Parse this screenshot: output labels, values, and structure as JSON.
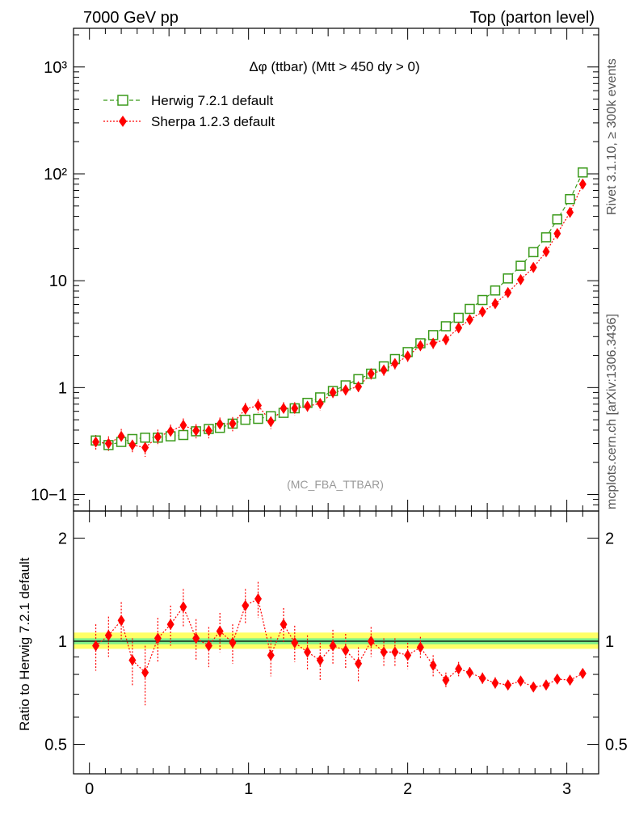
{
  "header": {
    "left": "7000 GeV pp",
    "right": "Top (parton level)"
  },
  "side_labels": {
    "rivet": "Rivet 3.1.10, ≥ 300k events",
    "mcplots": "mcplots.cern.ch [arXiv:1306.3436]"
  },
  "colors": {
    "herwig": "#3a9a1a",
    "sherpa": "#ff0000",
    "band_inner": "#7ff08a",
    "band_outer": "#ffff66"
  },
  "chart_data": [
    {
      "type": "scatter",
      "title": "Δφ (ttbar) (Mtt > 450 dy > 0)",
      "watermark": "(MC_FBA_TTBAR)",
      "xlabel": "",
      "ylabel": "",
      "yscale": "log",
      "xlim": [
        -0.1,
        3.2
      ],
      "ylim": [
        0.07,
        2300
      ],
      "ytick_labels": [
        "10−1",
        "1",
        "10",
        "10²",
        "10³"
      ],
      "legend_position": "top-left",
      "x": [
        0.04,
        0.12,
        0.2,
        0.27,
        0.35,
        0.43,
        0.51,
        0.59,
        0.67,
        0.75,
        0.82,
        0.9,
        0.98,
        1.06,
        1.14,
        1.22,
        1.29,
        1.37,
        1.45,
        1.53,
        1.61,
        1.69,
        1.77,
        1.85,
        1.92,
        2.0,
        2.08,
        2.16,
        2.24,
        2.32,
        2.39,
        2.47,
        2.55,
        2.63,
        2.71,
        2.79,
        2.87,
        2.94,
        3.02,
        3.1
      ],
      "series": [
        {
          "name": "Herwig 7.2.1 default",
          "marker": "open-square",
          "values": [
            0.32,
            0.29,
            0.31,
            0.33,
            0.34,
            0.34,
            0.35,
            0.36,
            0.39,
            0.41,
            0.42,
            0.46,
            0.5,
            0.51,
            0.54,
            0.58,
            0.64,
            0.72,
            0.81,
            0.93,
            1.05,
            1.2,
            1.35,
            1.58,
            1.85,
            2.15,
            2.6,
            3.1,
            3.75,
            4.5,
            5.45,
            6.6,
            8.1,
            10.5,
            13.8,
            18.5,
            25.5,
            37.5,
            58,
            103
          ],
          "errors": [
            0.02,
            0.02,
            0.02,
            0.02,
            0.02,
            0.02,
            0.02,
            0.02,
            0.02,
            0.02,
            0.02,
            0.02,
            0.02,
            0.02,
            0.02,
            0.02,
            0.03,
            0.03,
            0.03,
            0.03,
            0.04,
            0.04,
            0.05,
            0.05,
            0.06,
            0.07,
            0.08,
            0.09,
            0.1,
            0.12,
            0.14,
            0.17,
            0.2,
            0.25,
            0.3,
            0.4,
            0.5,
            0.7,
            1.0,
            1.5
          ]
        },
        {
          "name": "Sherpa 1.2.3 default",
          "marker": "filled-diamond",
          "values": [
            0.31,
            0.3,
            0.35,
            0.29,
            0.275,
            0.345,
            0.39,
            0.445,
            0.395,
            0.395,
            0.455,
            0.46,
            0.63,
            0.68,
            0.48,
            0.64,
            0.64,
            0.67,
            0.71,
            0.9,
            0.95,
            1.02,
            1.35,
            1.46,
            1.68,
            1.97,
            2.47,
            2.6,
            2.82,
            3.62,
            4.32,
            5.12,
            6.1,
            7.74,
            10.22,
            13.3,
            18.7,
            27.6,
            43.6,
            80
          ],
          "errors": [
            0.05,
            0.05,
            0.06,
            0.05,
            0.05,
            0.06,
            0.06,
            0.07,
            0.06,
            0.06,
            0.07,
            0.07,
            0.09,
            0.1,
            0.07,
            0.09,
            0.09,
            0.09,
            0.1,
            0.12,
            0.13,
            0.14,
            0.16,
            0.17,
            0.2,
            0.23,
            0.27,
            0.3,
            0.32,
            0.38,
            0.45,
            0.52,
            0.6,
            0.75,
            0.95,
            1.2,
            1.6,
            2.2,
            3.2,
            5.0
          ]
        }
      ]
    },
    {
      "type": "scatter",
      "title": "",
      "xlabel": "",
      "ylabel": "Ratio to Herwig 7.2.1 default",
      "yscale": "log",
      "xlim": [
        -0.1,
        3.2
      ],
      "ylim": [
        0.41,
        2.4
      ],
      "ytick_labels": [
        "0.5",
        "1",
        "2"
      ],
      "xtick_labels": [
        "0",
        "1",
        "2",
        "3"
      ],
      "reference": {
        "value": 1,
        "band_inner": [
          0.98,
          1.02
        ],
        "band_outer": [
          0.95,
          1.06
        ]
      },
      "x": [
        0.04,
        0.12,
        0.2,
        0.27,
        0.35,
        0.43,
        0.51,
        0.59,
        0.67,
        0.75,
        0.82,
        0.9,
        0.98,
        1.06,
        1.14,
        1.22,
        1.29,
        1.37,
        1.45,
        1.53,
        1.61,
        1.69,
        1.77,
        1.85,
        1.92,
        2.0,
        2.08,
        2.16,
        2.24,
        2.32,
        2.39,
        2.47,
        2.55,
        2.63,
        2.71,
        2.79,
        2.87,
        2.94,
        3.02,
        3.1
      ],
      "series": [
        {
          "name": "Sherpa 1.2.3 default",
          "marker": "filled-diamond",
          "values": [
            0.97,
            1.04,
            1.15,
            0.88,
            0.81,
            1.02,
            1.12,
            1.26,
            1.02,
            0.97,
            1.07,
            0.99,
            1.27,
            1.33,
            0.91,
            1.12,
            0.99,
            0.93,
            0.88,
            0.97,
            0.94,
            0.86,
            1.0,
            0.93,
            0.93,
            0.91,
            0.96,
            0.85,
            0.77,
            0.83,
            0.81,
            0.78,
            0.755,
            0.745,
            0.765,
            0.735,
            0.745,
            0.775,
            0.77,
            0.805
          ],
          "errors": [
            0.15,
            0.14,
            0.15,
            0.14,
            0.16,
            0.15,
            0.15,
            0.16,
            0.14,
            0.13,
            0.14,
            0.13,
            0.15,
            0.16,
            0.12,
            0.13,
            0.12,
            0.11,
            0.11,
            0.11,
            0.11,
            0.1,
            0.1,
            0.09,
            0.09,
            0.08,
            0.07,
            0.06,
            0.04,
            0.04,
            0.03,
            0.03,
            0.03,
            0.02,
            0.02,
            0.02,
            0.02,
            0.02,
            0.02,
            0.02
          ]
        }
      ]
    }
  ]
}
